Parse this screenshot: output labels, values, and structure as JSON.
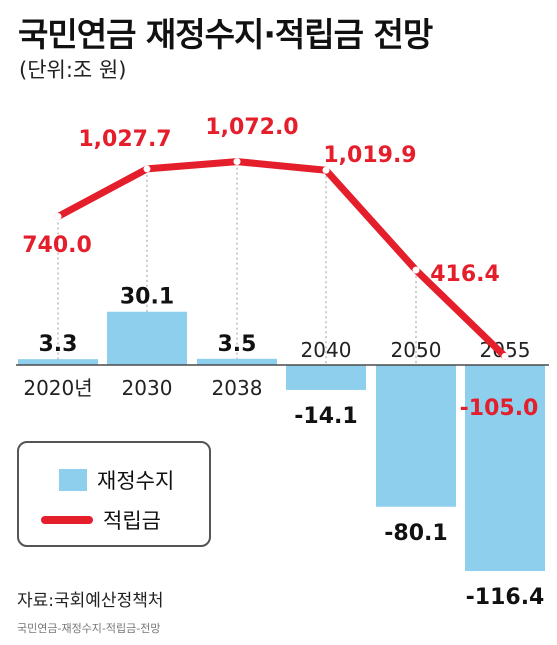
{
  "title": "국민연금 재정수지·적립금 전망",
  "subtitle": "(단위:조 원)",
  "source": "자료:국회예산정책처",
  "caption": "국민연금-재정수지-적립금-전망",
  "legend": {
    "bar_label": "재정수지",
    "line_label": "적립금"
  },
  "colors": {
    "bar": "#8fcfee",
    "line": "#e41e2b",
    "line_labels": "#e41e2b",
    "text": "#111111"
  },
  "chart_data": {
    "type": "bar+line",
    "categories": [
      "2020년",
      "2030",
      "2038",
      "2040",
      "2050",
      "2055"
    ],
    "series": [
      {
        "name": "재정수지",
        "type": "bar",
        "values": [
          3.3,
          30.1,
          3.5,
          -14.1,
          -80.1,
          -116.4
        ],
        "labels": [
          "3.3",
          "30.1",
          "3.5",
          "-14.1",
          "-80.1",
          "-116.4"
        ]
      },
      {
        "name": "적립금",
        "type": "line",
        "values": [
          740.0,
          1027.7,
          1072.0,
          1019.9,
          416.4,
          -105.0
        ],
        "labels": [
          "740.0",
          "1,027.7",
          "1,072.0",
          "1,019.9",
          "416.4",
          "-105.0"
        ]
      }
    ],
    "legend_position": "bottom-left",
    "grid": false
  }
}
